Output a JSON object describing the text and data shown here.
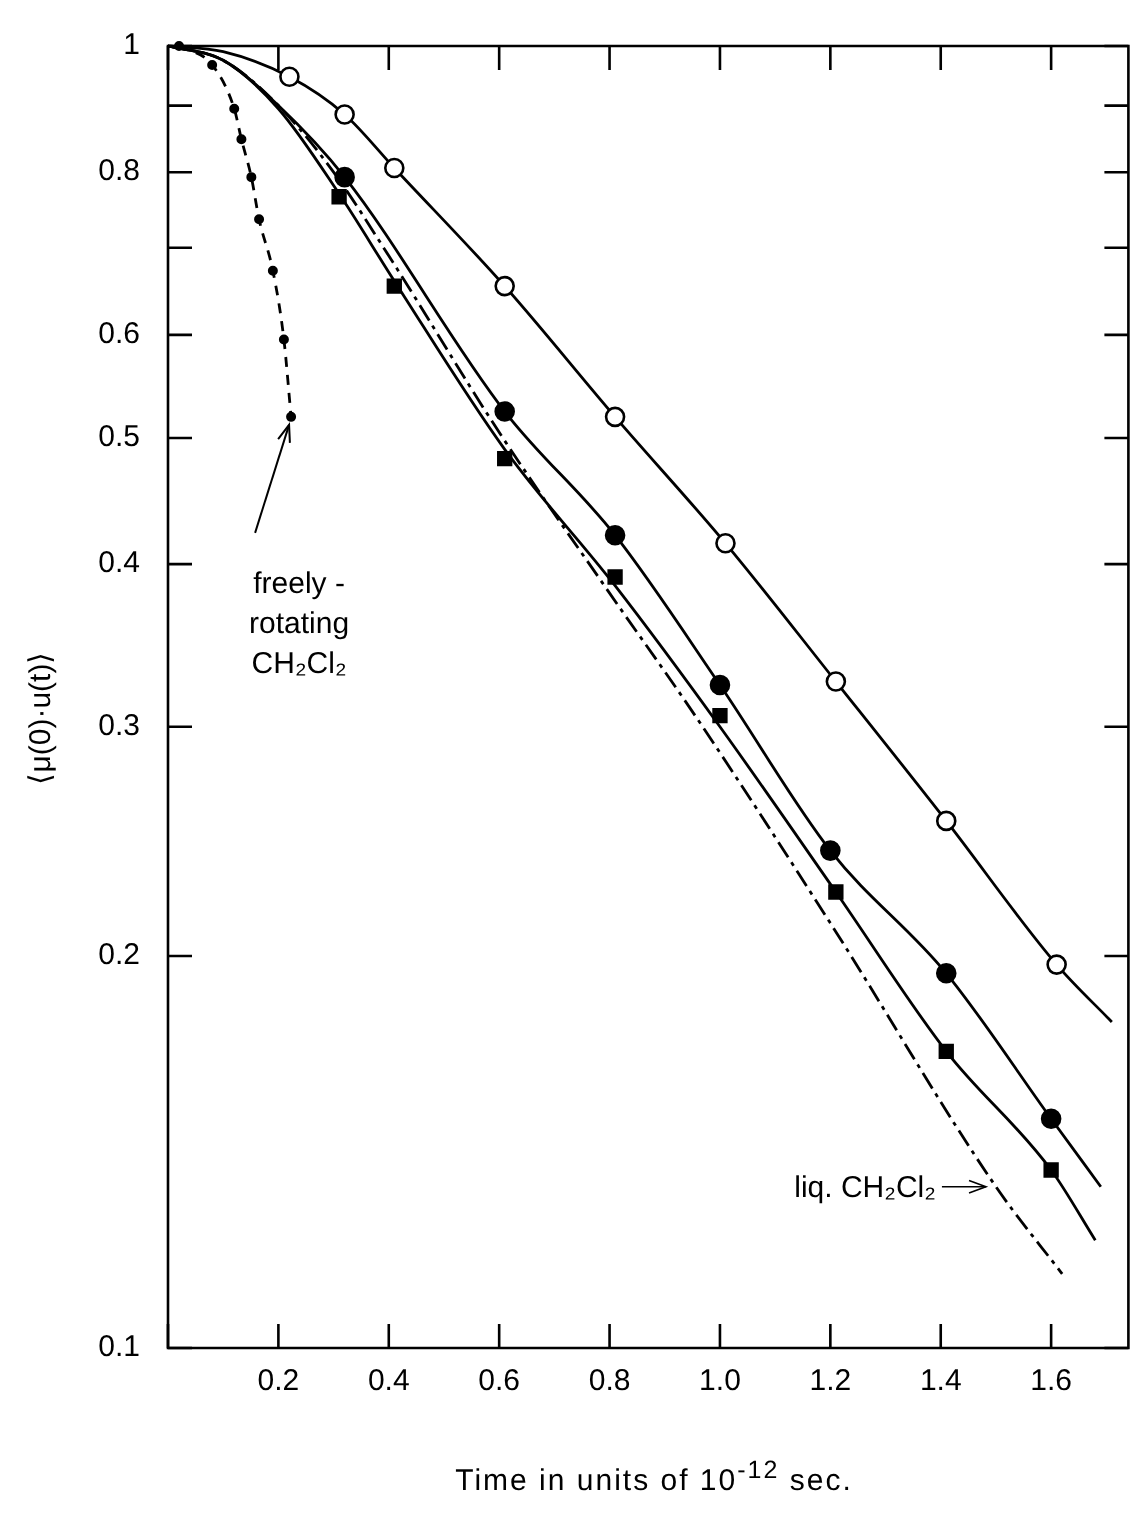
{
  "chart_data": {
    "type": "line",
    "xlabel": "Time in units of 10$^{-12}$ sec.",
    "ylabel": "⟨μ(0)·u(t)⟩",
    "log": "y",
    "grid": false,
    "legend": false,
    "xlim": [
      0,
      1.74
    ],
    "xticks": [
      {
        "value": 0,
        "label": null
      },
      0.2,
      0.4,
      0.6,
      0.8,
      {
        "value": 1,
        "label": "1.0"
      },
      1.2,
      1.4,
      1.6
    ],
    "ylim": [
      0.1,
      1
    ],
    "yticks": [
      0.1,
      0.2,
      0.3,
      0.4,
      0.5,
      0.6,
      {
        "value": 0.7,
        "label": null
      },
      0.8,
      {
        "value": 0.9,
        "label": null
      },
      {
        "value": 1,
        "label": "1"
      }
    ],
    "series": [
      {
        "type": "scatter",
        "marker": "circle",
        "color": "#ffffff",
        "x": [
          0.22,
          0.32,
          0.41,
          0.61,
          0.81,
          1.01,
          1.21,
          1.41,
          1.61
        ],
        "values": [
          0.947,
          0.886,
          0.806,
          0.654,
          0.519,
          0.415,
          0.325,
          0.254,
          0.197
        ]
      },
      {
        "type": "scatter",
        "marker": "circle",
        "color": "#000000",
        "x": [
          0.32,
          0.61,
          0.81,
          1.0,
          1.2,
          1.41,
          1.6
        ],
        "values": [
          0.793,
          0.524,
          0.421,
          0.323,
          0.241,
          0.194,
          0.15
        ]
      },
      {
        "type": "scatter",
        "marker": "square",
        "color": "#000000",
        "x": [
          0.31,
          0.41,
          0.61,
          0.81,
          1.0,
          1.21,
          1.41,
          1.6
        ],
        "values": [
          0.766,
          0.654,
          0.482,
          0.391,
          0.306,
          0.224,
          0.169,
          0.137
        ]
      },
      {
        "type": "line",
        "marker": "none",
        "line_style": "solid",
        "color": "#000000",
        "x": [
          0,
          0.1,
          0.22,
          0.32,
          0.41,
          0.61,
          0.81,
          1.01,
          1.21,
          1.41,
          1.61,
          1.71
        ],
        "values": [
          1,
          0.99,
          0.947,
          0.886,
          0.806,
          0.654,
          0.519,
          0.415,
          0.325,
          0.254,
          0.197,
          0.178
        ]
      },
      {
        "type": "line",
        "marker": "none",
        "line_style": "solid",
        "color": "#000000",
        "x": [
          0,
          0.1,
          0.2,
          0.32,
          0.61,
          0.81,
          1.0,
          1.2,
          1.41,
          1.6,
          1.69
        ],
        "values": [
          1,
          0.975,
          0.9,
          0.793,
          0.524,
          0.421,
          0.323,
          0.241,
          0.194,
          0.15,
          0.133
        ]
      },
      {
        "type": "line",
        "marker": "none",
        "line_style": "solid",
        "color": "#000000",
        "x": [
          0,
          0.1,
          0.2,
          0.31,
          0.41,
          0.61,
          0.81,
          1.0,
          1.21,
          1.41,
          1.6,
          1.68
        ],
        "values": [
          1,
          0.975,
          0.895,
          0.77,
          0.66,
          0.49,
          0.385,
          0.3,
          0.224,
          0.169,
          0.137,
          0.121
        ]
      },
      {
        "type": "line",
        "marker": "none",
        "line_style": "dashdot",
        "color": "#000000",
        "x": [
          0,
          0.1,
          0.2,
          0.3,
          0.4,
          0.6,
          0.8,
          0.955,
          1.2,
          1.5,
          1.62
        ],
        "values": [
          1,
          0.975,
          0.9,
          0.8,
          0.69,
          0.505,
          0.38,
          0.306,
          0.212,
          0.133,
          0.114
        ]
      },
      {
        "type": "line",
        "marker": "circle",
        "line_style": "dashed",
        "color": "#000000",
        "x": [
          0.02,
          0.08,
          0.12,
          0.133,
          0.151,
          0.165,
          0.19,
          0.21,
          0.223
        ],
        "values": [
          1,
          0.967,
          0.895,
          0.848,
          0.793,
          0.736,
          0.672,
          0.595,
          0.519
        ]
      }
    ],
    "annotations": [
      {
        "text": "freely -\nrotating\nCH₂Cl₂",
        "x": 0.223,
        "y": 0.519
      },
      {
        "text": "liq. CH₂Cl₂",
        "x": 1.5,
        "y": 0.133
      }
    ]
  }
}
